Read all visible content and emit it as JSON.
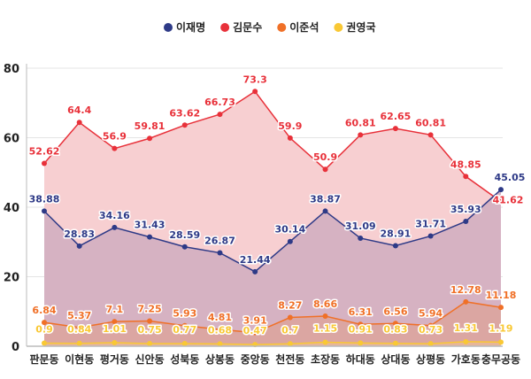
{
  "chart_data": {
    "type": "area",
    "categories": [
      "판문동",
      "이현동",
      "평거동",
      "신안동",
      "성북동",
      "상봉동",
      "중앙동",
      "천전동",
      "초장동",
      "하대동",
      "상대동",
      "상평동",
      "가호동",
      "충무공동"
    ],
    "series": [
      {
        "name": "이재명",
        "color": "#2e3a87",
        "fill": "#d6b2c2",
        "values": [
          38.88,
          28.83,
          34.16,
          31.43,
          28.59,
          26.87,
          21.44,
          30.14,
          38.87,
          31.09,
          28.91,
          31.71,
          35.93,
          45.05
        ]
      },
      {
        "name": "김문수",
        "color": "#e8313a",
        "fill": "#f7cfd1",
        "values": [
          52.62,
          64.4,
          56.9,
          59.81,
          63.62,
          66.73,
          73.3,
          59.9,
          50.9,
          60.81,
          62.65,
          60.81,
          48.85,
          41.62
        ]
      },
      {
        "name": "이준석",
        "color": "#f07027",
        "fill": "#dba6a2",
        "values": [
          6.84,
          5.37,
          7.1,
          7.25,
          5.93,
          4.81,
          3.91,
          8.27,
          8.66,
          6.31,
          6.56,
          5.94,
          12.78,
          11.18
        ]
      },
      {
        "name": "권영국",
        "color": "#f9c834",
        "fill": "#e6b59a",
        "values": [
          0.9,
          0.84,
          1.01,
          0.75,
          0.77,
          0.68,
          0.47,
          0.7,
          1.15,
          0.91,
          0.83,
          0.73,
          1.31,
          1.19
        ]
      }
    ],
    "ylim": [
      0,
      80
    ],
    "yticks": [
      0,
      20,
      40,
      60,
      80
    ],
    "grid": true,
    "legend": "top-center"
  }
}
